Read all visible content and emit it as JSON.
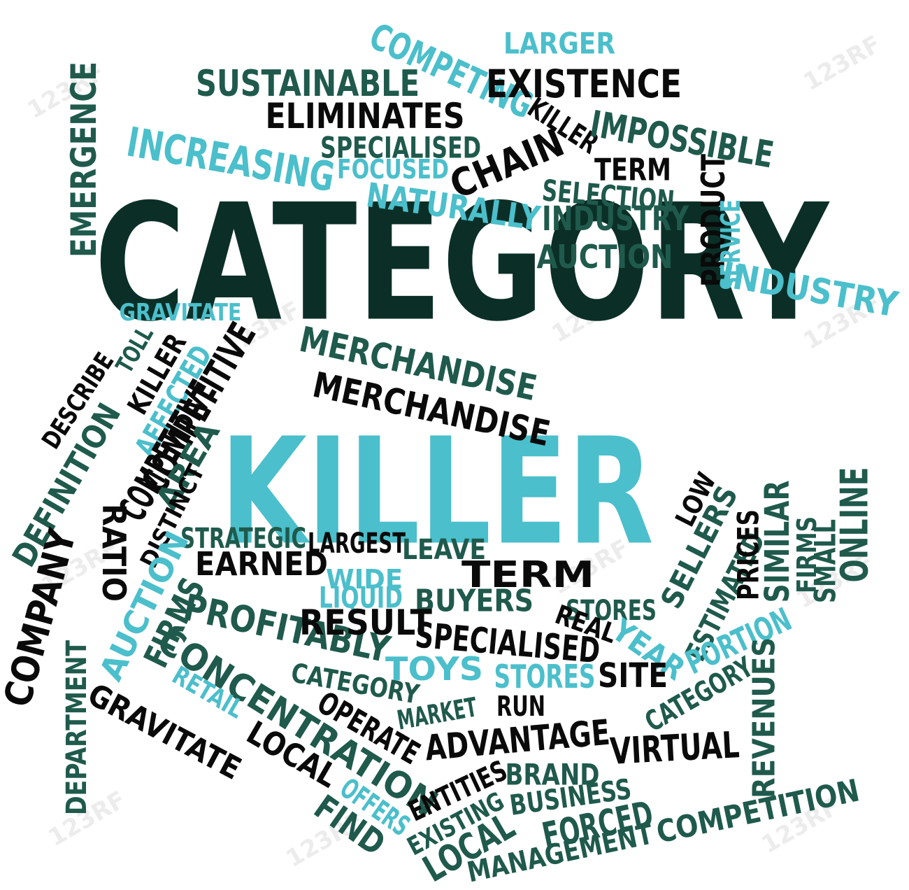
{
  "palette": {
    "dark": "#0b2f27",
    "black": "#0a0a0a",
    "teal": "#1f5a4c",
    "cyan": "#4bbfcb"
  },
  "watermark": "123RF",
  "words": [
    {
      "text": "CATEGORY",
      "color": "dark"
    },
    {
      "text": "KILLER",
      "color": "cyan"
    },
    {
      "text": "COMPETING",
      "color": "cyan"
    },
    {
      "text": "LARGER",
      "color": "cyan"
    },
    {
      "text": "EXISTENCE",
      "color": "black"
    },
    {
      "text": "SUSTAINABLE",
      "color": "teal"
    },
    {
      "text": "ELIMINATES",
      "color": "black"
    },
    {
      "text": "KILLER",
      "color": "black"
    },
    {
      "text": "IMPOSSIBLE",
      "color": "teal"
    },
    {
      "text": "SPECIALISED",
      "color": "teal"
    },
    {
      "text": "INCREASING",
      "color": "cyan"
    },
    {
      "text": "FOCUSED",
      "color": "cyan"
    },
    {
      "text": "CHAIN",
      "color": "black"
    },
    {
      "text": "TERM",
      "color": "black"
    },
    {
      "text": "EMERGENCE",
      "color": "teal"
    },
    {
      "text": "SELECTION",
      "color": "teal"
    },
    {
      "text": "NATURALLY",
      "color": "cyan"
    },
    {
      "text": "INDUSTRY",
      "color": "teal"
    },
    {
      "text": "AUCTION",
      "color": "teal"
    },
    {
      "text": "PRODUCT",
      "color": "black"
    },
    {
      "text": "SERVICE",
      "color": "cyan"
    },
    {
      "text": "INDUSTRY",
      "color": "cyan"
    },
    {
      "text": "GRAVITATE",
      "color": "cyan"
    },
    {
      "text": "MERCHANDISE",
      "color": "teal"
    },
    {
      "text": "MERCHANDISE",
      "color": "black"
    },
    {
      "text": "DESCRIBE",
      "color": "black"
    },
    {
      "text": "TOLL",
      "color": "teal"
    },
    {
      "text": "KILLER",
      "color": "black"
    },
    {
      "text": "AFFECTED",
      "color": "cyan"
    },
    {
      "text": "COMPETITIVE",
      "color": "black"
    },
    {
      "text": "DEFINITION",
      "color": "teal"
    },
    {
      "text": "COMPETITIVE",
      "color": "black"
    },
    {
      "text": "AREA",
      "color": "teal"
    },
    {
      "text": "DISTINCT",
      "color": "black"
    },
    {
      "text": "RATIO",
      "color": "black"
    },
    {
      "text": "COMPANY",
      "color": "black"
    },
    {
      "text": "STRATEGIC",
      "color": "teal"
    },
    {
      "text": "LARGEST",
      "color": "black"
    },
    {
      "text": "LEAVE",
      "color": "teal"
    },
    {
      "text": "EARNED",
      "color": "black"
    },
    {
      "text": "WIDE",
      "color": "cyan"
    },
    {
      "text": "TERM",
      "color": "black"
    },
    {
      "text": "LIQUID",
      "color": "cyan"
    },
    {
      "text": "BUYERS",
      "color": "teal"
    },
    {
      "text": "STORES",
      "color": "teal"
    },
    {
      "text": "REAL",
      "color": "black"
    },
    {
      "text": "AUCTION",
      "color": "cyan"
    },
    {
      "text": "FIRMS",
      "color": "teal"
    },
    {
      "text": "PROFITABLY",
      "color": "teal"
    },
    {
      "text": "RESULT",
      "color": "black"
    },
    {
      "text": "SPECIALISED",
      "color": "black"
    },
    {
      "text": "YEAR",
      "color": "cyan"
    },
    {
      "text": "LOW",
      "color": "black"
    },
    {
      "text": "SELLERS",
      "color": "teal"
    },
    {
      "text": "ESTIMATED",
      "color": "teal"
    },
    {
      "text": "PRICES",
      "color": "black"
    },
    {
      "text": "SIMILAR",
      "color": "teal"
    },
    {
      "text": "FIRMS",
      "color": "teal"
    },
    {
      "text": "SMALL",
      "color": "teal"
    },
    {
      "text": "ONLINE",
      "color": "teal"
    },
    {
      "text": "PORTION",
      "color": "cyan"
    },
    {
      "text": "CONCENTRATION",
      "color": "teal"
    },
    {
      "text": "TOYS",
      "color": "cyan"
    },
    {
      "text": "STORES",
      "color": "cyan"
    },
    {
      "text": "SITE",
      "color": "black"
    },
    {
      "text": "DEPARTMENT",
      "color": "teal"
    },
    {
      "text": "CATEGORY",
      "color": "teal"
    },
    {
      "text": "RETAIL",
      "color": "cyan"
    },
    {
      "text": "CATEGORY",
      "color": "teal"
    },
    {
      "text": "GRAVITATE",
      "color": "black"
    },
    {
      "text": "OPERATE",
      "color": "black"
    },
    {
      "text": "MARKET",
      "color": "teal"
    },
    {
      "text": "RUN",
      "color": "black"
    },
    {
      "text": "REVENUES",
      "color": "teal"
    },
    {
      "text": "ADVANTAGE",
      "color": "black"
    },
    {
      "text": "LOCAL",
      "color": "black"
    },
    {
      "text": "BRAND",
      "color": "teal"
    },
    {
      "text": "VIRTUAL",
      "color": "black"
    },
    {
      "text": "ENTITIES",
      "color": "black"
    },
    {
      "text": "BUSINESS",
      "color": "teal"
    },
    {
      "text": "OFFERS",
      "color": "cyan"
    },
    {
      "text": "FIND",
      "color": "teal"
    },
    {
      "text": "EXISTING",
      "color": "teal"
    },
    {
      "text": "FORCED",
      "color": "teal"
    },
    {
      "text": "LOCAL",
      "color": "teal"
    },
    {
      "text": "COMPETITION",
      "color": "teal"
    },
    {
      "text": "MANAGEMENT",
      "color": "teal"
    }
  ]
}
